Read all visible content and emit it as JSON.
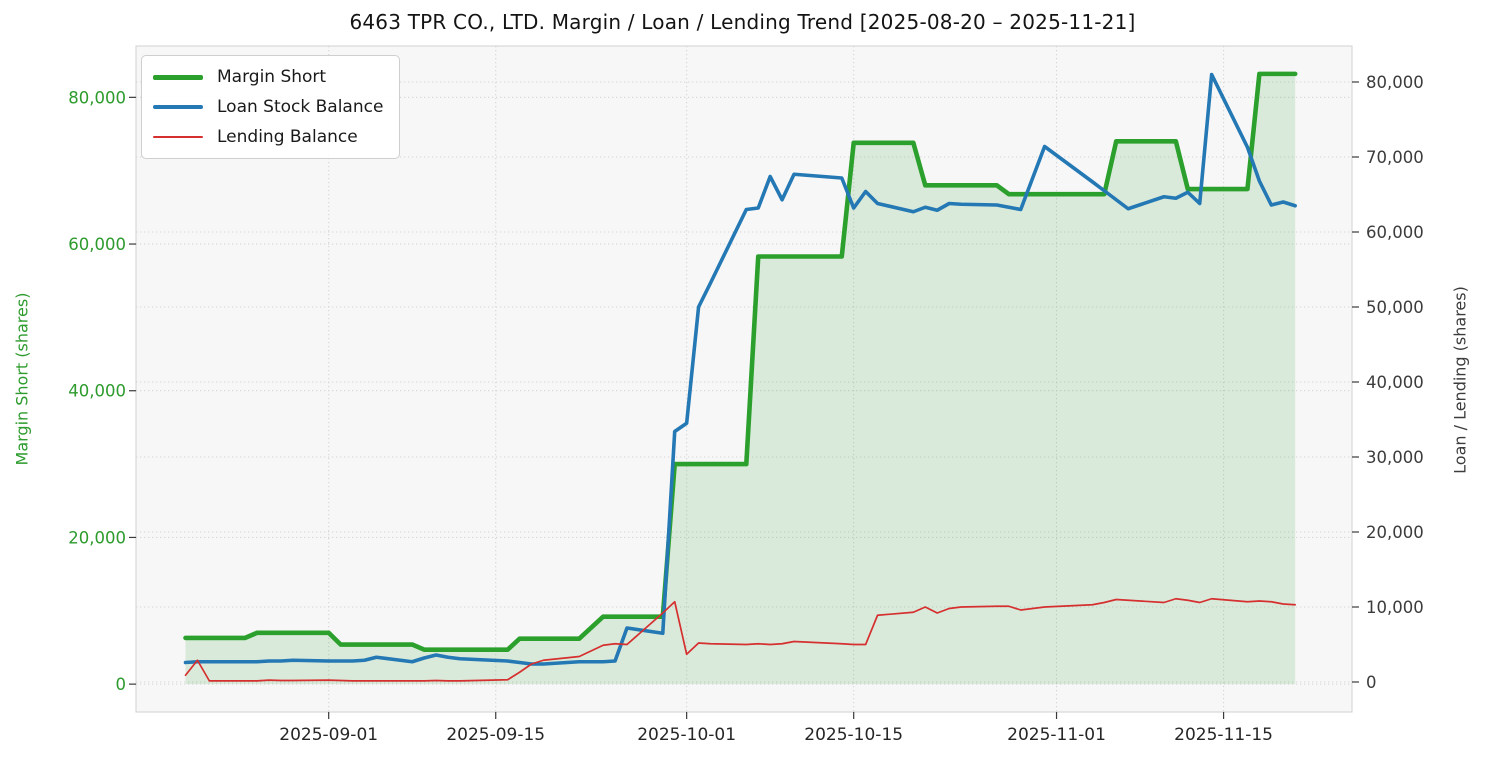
{
  "header": {
    "title": "6463 TPR CO., LTD. Margin / Loan / Lending Trend [2025-08-20 – 2025-11-21]"
  },
  "chart_data": {
    "type": "line",
    "title": "6463 TPR CO., LTD. Margin / Loan / Lending Trend [2025-08-20 – 2025-11-21]",
    "ylabel_left": "Margin Short (shares)",
    "ylabel_right": "Loan / Lending (shares)",
    "date_range": [
      "2025-08-20",
      "2025-11-21"
    ],
    "grid": true,
    "legend_position": "upper left",
    "x_tick_labels": [
      "2025-09-01",
      "2025-09-15",
      "2025-10-01",
      "2025-10-15",
      "2025-11-01",
      "2025-11-15"
    ],
    "y_left_ticks": [
      0,
      20000,
      40000,
      60000,
      80000
    ],
    "y_right_ticks": [
      0,
      10000,
      20000,
      30000,
      40000,
      50000,
      60000,
      70000,
      80000
    ],
    "ylim_left": [
      -3800,
      87000
    ],
    "ylim_right": [
      -4000,
      84800
    ],
    "x": [
      "2025-08-20",
      "2025-08-21",
      "2025-08-22",
      "2025-08-25",
      "2025-08-26",
      "2025-08-27",
      "2025-08-28",
      "2025-08-29",
      "2025-09-01",
      "2025-09-02",
      "2025-09-03",
      "2025-09-04",
      "2025-09-05",
      "2025-09-08",
      "2025-09-09",
      "2025-09-10",
      "2025-09-11",
      "2025-09-12",
      "2025-09-16",
      "2025-09-17",
      "2025-09-18",
      "2025-09-19",
      "2025-09-22",
      "2025-09-24",
      "2025-09-25",
      "2025-09-26",
      "2025-09-29",
      "2025-09-30",
      "2025-10-01",
      "2025-10-02",
      "2025-10-03",
      "2025-10-06",
      "2025-10-07",
      "2025-10-08",
      "2025-10-09",
      "2025-10-10",
      "2025-10-14",
      "2025-10-15",
      "2025-10-16",
      "2025-10-17",
      "2025-10-20",
      "2025-10-21",
      "2025-10-22",
      "2025-10-23",
      "2025-10-24",
      "2025-10-27",
      "2025-10-28",
      "2025-10-29",
      "2025-10-30",
      "2025-10-31",
      "2025-11-04",
      "2025-11-05",
      "2025-11-06",
      "2025-11-07",
      "2025-11-10",
      "2025-11-11",
      "2025-11-12",
      "2025-11-13",
      "2025-11-14",
      "2025-11-17",
      "2025-11-18",
      "2025-11-19",
      "2025-11-20",
      "2025-11-21"
    ],
    "series": [
      {
        "name": "Margin Short",
        "axis": "left",
        "color": "#2ca02c",
        "fill_color": "rgba(44,160,44,0.15)",
        "fill": true,
        "values": [
          6300,
          6300,
          6300,
          6300,
          7000,
          7000,
          7000,
          7000,
          7000,
          5400,
          5400,
          5400,
          5400,
          5400,
          4700,
          4700,
          4700,
          4700,
          4700,
          6200,
          6200,
          6200,
          6200,
          9200,
          9200,
          9200,
          9200,
          30000,
          30000,
          30000,
          30000,
          30000,
          58300,
          58300,
          58300,
          58300,
          58300,
          73800,
          73800,
          73800,
          73800,
          68000,
          68000,
          68000,
          68000,
          68000,
          66800,
          66800,
          66800,
          66800,
          66800,
          66800,
          74000,
          74000,
          74000,
          74000,
          67500,
          67500,
          67500,
          67500,
          83200,
          83200,
          83200,
          83200
        ]
      },
      {
        "name": "Loan Stock Balance",
        "axis": "right",
        "color": "#2478b4",
        "fill": false,
        "values": [
          2600,
          2700,
          2700,
          2700,
          2700,
          2800,
          2800,
          2900,
          2800,
          2800,
          2800,
          2900,
          3300,
          2700,
          3200,
          3600,
          3300,
          3100,
          2800,
          2600,
          2400,
          2400,
          2700,
          2700,
          2800,
          7200,
          6500,
          33400,
          34500,
          50000,
          53200,
          63000,
          63200,
          67400,
          64300,
          67700,
          67200,
          63200,
          65400,
          63800,
          62700,
          63300,
          62900,
          63800,
          63700,
          63600,
          63300,
          63000,
          67200,
          71400,
          66700,
          65500,
          64300,
          63100,
          64700,
          64500,
          65300,
          63800,
          81000,
          71300,
          66800,
          63600,
          64000,
          63500
        ]
      },
      {
        "name": "Lending Balance",
        "axis": "right",
        "color": "#d62f2f",
        "fill": false,
        "values": [
          900,
          2900,
          150,
          150,
          150,
          250,
          200,
          200,
          250,
          200,
          150,
          150,
          150,
          150,
          150,
          200,
          150,
          150,
          300,
          1300,
          2400,
          2900,
          3400,
          4900,
          5100,
          5000,
          9200,
          10700,
          3700,
          5200,
          5100,
          5000,
          5100,
          5000,
          5100,
          5400,
          5100,
          5000,
          5000,
          8900,
          9300,
          10000,
          9200,
          9800,
          10000,
          10100,
          10100,
          9600,
          9800,
          10000,
          10300,
          10600,
          11000,
          10900,
          10600,
          11100,
          10900,
          10600,
          11100,
          10700,
          10800,
          10700,
          10400,
          10300
        ]
      }
    ]
  },
  "colors": {
    "plot_background": "#f7f7f8",
    "grid": "#d5d5d5",
    "spine": "#d0d0d0",
    "tick_mark": "#3a3a3a",
    "y_left_tick_label": "#2d9b2d",
    "y_right_tick_label": "#3c3c3c",
    "x_tick_label": "#262626"
  }
}
